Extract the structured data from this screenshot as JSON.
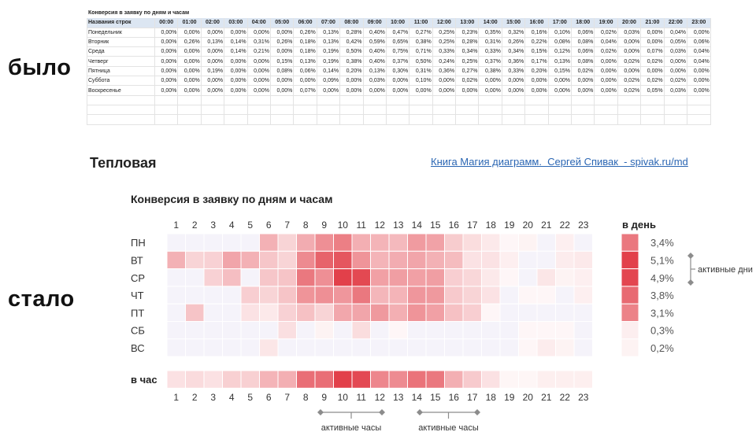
{
  "labels": {
    "before": "было",
    "after": "стало"
  },
  "spreadsheet": {
    "title": "Конверсия в заявку по дням и часам",
    "row_header": "Названия строк",
    "hours": [
      "00:00",
      "01:00",
      "02:00",
      "03:00",
      "04:00",
      "05:00",
      "06:00",
      "07:00",
      "08:00",
      "09:00",
      "10:00",
      "11:00",
      "12:00",
      "13:00",
      "14:00",
      "15:00",
      "16:00",
      "17:00",
      "18:00",
      "19:00",
      "20:00",
      "21:00",
      "22:00",
      "23:00"
    ],
    "rows": [
      {
        "day": "Понедельник",
        "values": [
          "0,00%",
          "0,00%",
          "0,00%",
          "0,00%",
          "0,00%",
          "0,00%",
          "0,26%",
          "0,13%",
          "0,28%",
          "0,40%",
          "0,47%",
          "0,27%",
          "0,25%",
          "0,23%",
          "0,35%",
          "0,32%",
          "0,16%",
          "0,10%",
          "0,06%",
          "0,02%",
          "0,03%",
          "0,00%",
          "0,04%",
          "0,00%"
        ]
      },
      {
        "day": "Вторник",
        "values": [
          "0,00%",
          "0,26%",
          "0,13%",
          "0,14%",
          "0,31%",
          "0,26%",
          "0,18%",
          "0,13%",
          "0,42%",
          "0,59%",
          "0,65%",
          "0,38%",
          "0,25%",
          "0,28%",
          "0,31%",
          "0,26%",
          "0,22%",
          "0,08%",
          "0,08%",
          "0,04%",
          "0,00%",
          "0,00%",
          "0,05%",
          "0,06%"
        ]
      },
      {
        "day": "Среда",
        "values": [
          "0,00%",
          "0,00%",
          "0,00%",
          "0,14%",
          "0,21%",
          "0,00%",
          "0,18%",
          "0,19%",
          "0,50%",
          "0,40%",
          "0,75%",
          "0,71%",
          "0,33%",
          "0,34%",
          "0,33%",
          "0,34%",
          "0,15%",
          "0,12%",
          "0,06%",
          "0,02%",
          "0,00%",
          "0,07%",
          "0,03%",
          "0,04%"
        ]
      },
      {
        "day": "Четверг",
        "values": [
          "0,00%",
          "0,00%",
          "0,00%",
          "0,00%",
          "0,00%",
          "0,15%",
          "0,13%",
          "0,19%",
          "0,38%",
          "0,40%",
          "0,37%",
          "0,50%",
          "0,24%",
          "0,25%",
          "0,37%",
          "0,36%",
          "0,17%",
          "0,13%",
          "0,08%",
          "0,00%",
          "0,02%",
          "0,02%",
          "0,00%",
          "0,04%"
        ]
      },
      {
        "day": "Пятница",
        "values": [
          "0,00%",
          "0,00%",
          "0,19%",
          "0,00%",
          "0,00%",
          "0,08%",
          "0,06%",
          "0,14%",
          "0,20%",
          "0,13%",
          "0,30%",
          "0,31%",
          "0,36%",
          "0,27%",
          "0,38%",
          "0,33%",
          "0,20%",
          "0,15%",
          "0,02%",
          "0,00%",
          "0,00%",
          "0,00%",
          "0,00%",
          "0,00%"
        ]
      },
      {
        "day": "Суббота",
        "values": [
          "0,00%",
          "0,00%",
          "0,00%",
          "0,00%",
          "0,00%",
          "0,00%",
          "0,00%",
          "0,09%",
          "0,00%",
          "0,03%",
          "0,00%",
          "0,10%",
          "0,00%",
          "0,02%",
          "0,00%",
          "0,00%",
          "0,00%",
          "0,00%",
          "0,00%",
          "0,00%",
          "0,02%",
          "0,02%",
          "0,02%",
          "0,00%"
        ]
      },
      {
        "day": "Воскресенье",
        "values": [
          "0,00%",
          "0,00%",
          "0,00%",
          "0,00%",
          "0,00%",
          "0,00%",
          "0,07%",
          "0,00%",
          "0,00%",
          "0,00%",
          "0,00%",
          "0,00%",
          "0,00%",
          "0,00%",
          "0,00%",
          "0,00%",
          "0,00%",
          "0,00%",
          "0,00%",
          "0,00%",
          "0,02%",
          "0,05%",
          "0,03%",
          "0,00%"
        ]
      }
    ]
  },
  "heading": {
    "section_title": "Тепловая",
    "link_text": "Книга Магия диаграмм.  Сергей Спивак  - spivak.ru/md"
  },
  "chart_data": {
    "type": "heatmap",
    "title": "Конверсия в заявку по дням и часам",
    "x_labels": [
      "1",
      "2",
      "3",
      "4",
      "5",
      "6",
      "7",
      "8",
      "9",
      "10",
      "11",
      "12",
      "13",
      "14",
      "15",
      "16",
      "17",
      "18",
      "19",
      "20",
      "21",
      "22",
      "23"
    ],
    "rows": [
      "ПН",
      "ВТ",
      "СР",
      "ЧТ",
      "ПТ",
      "СБ",
      "ВС"
    ],
    "values": [
      [
        0,
        0,
        0,
        0,
        0,
        0.26,
        0.13,
        0.28,
        0.4,
        0.47,
        0.27,
        0.25,
        0.23,
        0.35,
        0.32,
        0.16,
        0.1,
        0.06,
        0.02,
        0.03,
        0,
        0.04,
        0
      ],
      [
        0.26,
        0.13,
        0.14,
        0.31,
        0.26,
        0.18,
        0.13,
        0.42,
        0.59,
        0.65,
        0.38,
        0.25,
        0.28,
        0.31,
        0.26,
        0.22,
        0.08,
        0.08,
        0.04,
        0,
        0,
        0.05,
        0.06
      ],
      [
        0,
        0,
        0.14,
        0.21,
        0,
        0.18,
        0.19,
        0.5,
        0.4,
        0.75,
        0.71,
        0.33,
        0.34,
        0.33,
        0.34,
        0.15,
        0.12,
        0.06,
        0.02,
        0,
        0.07,
        0.03,
        0.04
      ],
      [
        0,
        0,
        0,
        0,
        0.15,
        0.13,
        0.19,
        0.38,
        0.4,
        0.37,
        0.5,
        0.24,
        0.25,
        0.37,
        0.36,
        0.17,
        0.13,
        0.08,
        0,
        0.02,
        0.02,
        0,
        0.04
      ],
      [
        0,
        0.19,
        0,
        0,
        0.08,
        0.06,
        0.14,
        0.2,
        0.13,
        0.3,
        0.31,
        0.36,
        0.27,
        0.38,
        0.33,
        0.2,
        0.15,
        0.02,
        0,
        0,
        0,
        0,
        0
      ],
      [
        0,
        0,
        0,
        0,
        0,
        0,
        0.09,
        0,
        0.03,
        0,
        0.1,
        0,
        0.02,
        0,
        0,
        0,
        0,
        0,
        0,
        0.02,
        0.02,
        0.02,
        0
      ],
      [
        0,
        0,
        0,
        0,
        0,
        0.07,
        0,
        0,
        0,
        0,
        0,
        0,
        0,
        0,
        0,
        0,
        0,
        0,
        0,
        0.02,
        0.05,
        0.03,
        0
      ]
    ],
    "per_hour_label": "в час",
    "per_hour_values": [
      0.04,
      0.05,
      0.04,
      0.07,
      0.07,
      0.12,
      0.13,
      0.26,
      0.26,
      0.36,
      0.34,
      0.21,
      0.2,
      0.25,
      0.24,
      0.13,
      0.08,
      0.04,
      0.01,
      0.01,
      0.02,
      0.02,
      0.02
    ],
    "per_day_label": "в день",
    "per_day": [
      {
        "label": "3,4%",
        "value": 3.4
      },
      {
        "label": "5,1%",
        "value": 5.1
      },
      {
        "label": "4,9%",
        "value": 4.9
      },
      {
        "label": "3,8%",
        "value": 3.8
      },
      {
        "label": "3,1%",
        "value": 3.1
      },
      {
        "label": "0,3%",
        "value": 0.3
      },
      {
        "label": "0,2%",
        "value": 0.2
      }
    ],
    "annotations": {
      "active_days": "активные дни",
      "active_hours_1": "активные часы",
      "active_hours_2": "активные часы"
    },
    "colors": {
      "high": "#e2404a",
      "low": "#ffffff",
      "faint": "#f5f3fa",
      "marker": "#8c8c8c",
      "text": "#444444"
    }
  }
}
